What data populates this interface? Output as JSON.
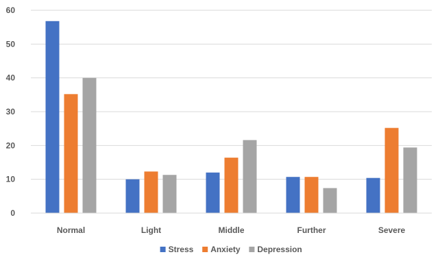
{
  "chart_data": {
    "type": "bar",
    "title": "",
    "xlabel": "",
    "ylabel": "",
    "categories": [
      "Normal",
      "Light",
      "Middle",
      "Further",
      "Severe"
    ],
    "series": [
      {
        "name": "Stress",
        "color": "#4472c4",
        "values": [
          56.8,
          10.0,
          12.0,
          10.7,
          10.4
        ]
      },
      {
        "name": "Anxiety",
        "color": "#ed7d31",
        "values": [
          35.2,
          12.3,
          16.4,
          10.7,
          25.2
        ]
      },
      {
        "name": "Depression",
        "color": "#a5a5a5",
        "values": [
          40.0,
          11.3,
          21.6,
          7.4,
          19.4
        ]
      }
    ],
    "ylim": [
      0,
      60
    ],
    "yticks": [
      "0",
      "10",
      "20",
      "30",
      "40",
      "50",
      "60"
    ],
    "grid": true,
    "legend_position": "bottom"
  }
}
